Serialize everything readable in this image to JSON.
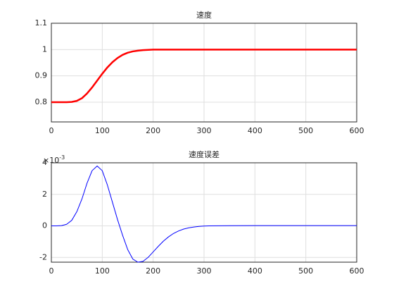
{
  "chart_data": [
    {
      "type": "line",
      "title": "速度",
      "x": [
        0,
        10,
        20,
        30,
        40,
        50,
        60,
        70,
        80,
        90,
        100,
        110,
        120,
        130,
        140,
        150,
        160,
        170,
        180,
        190,
        200,
        250,
        300,
        350,
        400,
        450,
        500,
        550,
        600
      ],
      "series": [
        {
          "name": "速度",
          "color": "#ff0000",
          "values": [
            0.8,
            0.8,
            0.8,
            0.8,
            0.801,
            0.805,
            0.815,
            0.833,
            0.856,
            0.882,
            0.908,
            0.932,
            0.952,
            0.968,
            0.98,
            0.988,
            0.993,
            0.996,
            0.998,
            0.999,
            1,
            1,
            1,
            1,
            1,
            1,
            1,
            1,
            1
          ]
        }
      ],
      "xlim": [
        0,
        600
      ],
      "xticks": [
        0,
        100,
        200,
        300,
        400,
        500,
        600
      ],
      "ylim": [
        0.725,
        1.1
      ],
      "yticks": [
        0.8,
        0.9,
        1,
        1.1
      ],
      "grid": true
    },
    {
      "type": "line",
      "title": "速度误差",
      "x": [
        0,
        10,
        20,
        30,
        40,
        50,
        60,
        70,
        80,
        90,
        100,
        110,
        120,
        130,
        140,
        150,
        160,
        170,
        180,
        190,
        200,
        210,
        220,
        230,
        240,
        250,
        260,
        270,
        280,
        290,
        300,
        310,
        350,
        400,
        450,
        500,
        550,
        600
      ],
      "series": [
        {
          "name": "速度误差",
          "color": "#0000ff",
          "values": [
            0,
            0,
            0.02,
            0.1,
            0.35,
            0.9,
            1.7,
            2.7,
            3.5,
            3.8,
            3.5,
            2.6,
            1.5,
            0.4,
            -0.6,
            -1.5,
            -2.1,
            -2.3,
            -2.25,
            -2.0,
            -1.65,
            -1.3,
            -0.97,
            -0.7,
            -0.48,
            -0.32,
            -0.2,
            -0.12,
            -0.07,
            -0.03,
            -0.01,
            0,
            0.01,
            0.02,
            0.02,
            0.02,
            0.02,
            0.02
          ]
        }
      ],
      "xlim": [
        0,
        600
      ],
      "xticks": [
        0,
        100,
        200,
        300,
        400,
        500,
        600
      ],
      "ylim": [
        -2.3,
        4
      ],
      "yticks": [
        -2,
        0,
        2,
        4
      ],
      "grid": true,
      "y_multiplier": {
        "base": "×10",
        "exponent": "-3"
      }
    }
  ]
}
